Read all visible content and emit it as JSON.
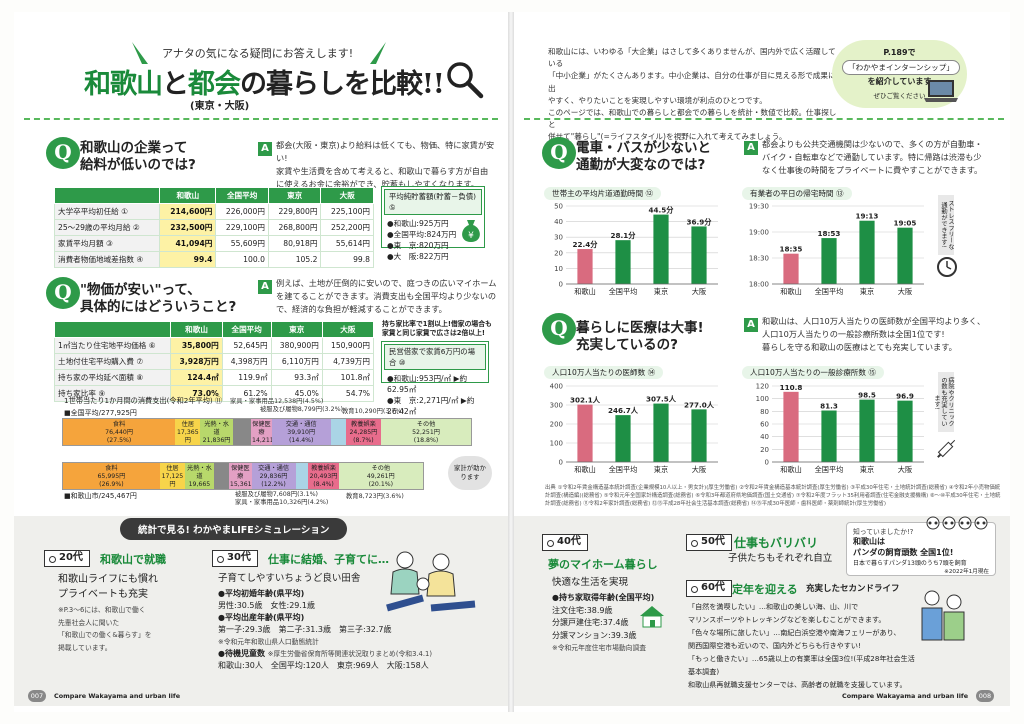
{
  "header": {
    "tagline": "アナタの気になる疑問にお答えします!",
    "title_a": "和歌山",
    "title_b": "と",
    "title_c": "都会",
    "title_d": "の暮らしを比較!!",
    "subtitle": "(東京・大阪)",
    "intro": [
      "和歌山には、いわゆる「大企業」はさして多くありませんが、国内外で広く活躍している",
      "「中小企業」がたくさんあります。中小企業は、自分の仕事が目に見える形で成果に出",
      "やすく、やりたいことを実現しやすい環境が利点のひとつです。",
      "このページでは、和歌山での暮らしと都会での暮らしを統計・数値で比較。仕事探しと",
      "併せて\"暮らし\"(=ライフスタイル)を視野に入れて考えてみましょう。"
    ],
    "callout": {
      "line1": "P.189で",
      "line2": "「わかやまインターンシップ」",
      "line3": "を紹介しています",
      "line4": "ぜひご覧ください"
    }
  },
  "q1": {
    "title1": "和歌山の企業って",
    "title2": "給料が低いのでは?",
    "answer": [
      "都会(大阪・東京)より給料は低くても、物価、特に家賃が安い!",
      "家賃や生活費を含めて考えると、和歌山で暮らす方が自由",
      "に使えるお金に余裕ができ、貯蓄もしやすくなります。"
    ],
    "headers": [
      "",
      "和歌山",
      "全国平均",
      "東京",
      "大阪"
    ],
    "rows": [
      [
        "大学卒平均初任給 ①",
        "214,600円",
        "226,000円",
        "229,800円",
        "225,100円"
      ],
      [
        "25～29歳の平均月給 ②",
        "232,500円",
        "229,100円",
        "268,800円",
        "252,200円"
      ],
      [
        "家賃平均月額 ③",
        "41,094円",
        "55,609円",
        "80,918円",
        "55,614円"
      ],
      [
        "消費者物価地域差指数 ④",
        "99.4",
        "100.0",
        "105.2",
        "99.8"
      ]
    ],
    "savings": {
      "head": "平均純貯蓄額(貯蓄－負債) ⑤",
      "items": [
        "●和歌山:925万円",
        "●全国平均:824万円",
        "●東　京:820万円",
        "●大　阪:822万円"
      ]
    }
  },
  "q2": {
    "title1": "\"物価が安い\"って、",
    "title2": "具体的にはどういうこと?",
    "answer": [
      "例えば、土地が圧倒的に安いので、庭つきの広いマイホーム",
      "を建てることができます。消費支出も全国平均より少ないの",
      "で、経済的な負担が軽減することができます。"
    ],
    "headers": [
      "",
      "和歌山",
      "全国平均",
      "東京",
      "大阪"
    ],
    "rows": [
      [
        "1㎡当たり住宅地平均価格 ⑥",
        "35,800円",
        "52,645円",
        "380,900円",
        "150,900円"
      ],
      [
        "土地付住宅平均購入費 ⑦",
        "3,928万円",
        "4,398万円",
        "6,110万円",
        "4,739万円"
      ],
      [
        "持ち家の平均延べ面積 ⑧",
        "124.4㎡",
        "119.9㎡",
        "93.3㎡",
        "101.8㎡"
      ],
      [
        "持ち家比率 ⑨",
        "73.0%",
        "61.2%",
        "45.0%",
        "54.7%"
      ]
    ],
    "side_note": [
      "持ち家比率で1割以上!借家の場合も",
      "家賃と同じ家賃で広さは2倍以上!"
    ],
    "rent_box": {
      "head": "民営借家で家賃6万円の場合 ⑩",
      "items": [
        "●和歌山:953円/㎡ ▶約62.95㎡",
        "●東　京:2,271円/㎡ ▶約26.42㎡"
      ]
    },
    "spend_title": "1世帯当たり1か月間の消費支出(令和2年平均) ⑪",
    "national_label": "■全国平均/277,925円",
    "wakayama_label": "■和歌山市/245,467円",
    "national": [
      {
        "name": "食料",
        "val": "76,440円",
        "pct": "(27.5%)",
        "w": 27.5,
        "c": "#f5a43c"
      },
      {
        "name": "住居",
        "val": "17,365円",
        "pct": "(6.2%)",
        "w": 6.2,
        "c": "#f7d44a"
      },
      {
        "name": "光熱・水道",
        "val": "21,836円",
        "pct": "(7.9%)",
        "w": 7.9,
        "c": "#b8d86b"
      },
      {
        "name": "",
        "val": "",
        "pct": "",
        "w": 4.5,
        "c": "#888"
      },
      {
        "name": "保健医療",
        "val": "14,211円",
        "pct": "(5.1%)",
        "w": 5.1,
        "c": "#e3a0c4"
      },
      {
        "name": "交通・通信",
        "val": "39,910円",
        "pct": "(14.4%)",
        "w": 14.4,
        "c": "#b5a0d8"
      },
      {
        "name": "",
        "val": "",
        "pct": "",
        "w": 3.7,
        "c": "#aad4e6"
      },
      {
        "name": "教養娯楽",
        "val": "24,285円",
        "pct": "(8.7%)",
        "w": 8.7,
        "c": "#e86c8c"
      },
      {
        "name": "その他",
        "val": "52,251円",
        "pct": "(18.8%)",
        "w": 22.0,
        "c": "#d8ecbd"
      }
    ],
    "wakayama": [
      {
        "name": "食料",
        "val": "65,995円",
        "pct": "(26.9%)",
        "w": 26.9,
        "c": "#f5a43c"
      },
      {
        "name": "住居",
        "val": "17,125円",
        "pct": "(7.0%)",
        "w": 7.0,
        "c": "#f7d44a"
      },
      {
        "name": "光熱・水道",
        "val": "19,665円",
        "pct": "(8.0%)",
        "w": 8.0,
        "c": "#b8d86b"
      },
      {
        "name": "",
        "val": "",
        "pct": "",
        "w": 4.2,
        "c": "#888"
      },
      {
        "name": "保健医療",
        "val": "15,361円",
        "pct": "(6.3%)",
        "w": 6.3,
        "c": "#e3a0c4"
      },
      {
        "name": "交通・通信",
        "val": "29,836円",
        "pct": "(12.2%)",
        "w": 12.2,
        "c": "#b5a0d8"
      },
      {
        "name": "",
        "val": "",
        "pct": "",
        "w": 3.6,
        "c": "#aad4e6"
      },
      {
        "name": "教養娯楽",
        "val": "20,493円",
        "pct": "(8.4%)",
        "w": 8.4,
        "c": "#e86c8c"
      },
      {
        "name": "その他",
        "val": "49,261円",
        "pct": "(20.1%)",
        "w": 23.4,
        "c": "#d8ecbd"
      }
    ],
    "top_notes": [
      "家具・家事用品12,538円(4.5%)",
      "被服及び履物8,799円(3.2%)",
      "教育10,290円(3.7%)"
    ],
    "bottom_notes": [
      "被服及び履物7,608円(3.1%)",
      "家具・家事用品10,326円(4.2%)",
      "教育8,723円(3.6%)"
    ],
    "cloud": "家計が助かります"
  },
  "q3": {
    "title1": "電車・バスが少ないと",
    "title2": "通勤が大変なのでは?",
    "answer": [
      "都会よりも公共交通機関は少ないので、多くの方が自動車・",
      "バイク・自転車などで通勤しています。特に帰路は渋滞も少",
      "なく仕事後の時間をプライベートに費やすことができます。"
    ],
    "chart1_title": "世帯主の平均片道通勤時間 ⑫",
    "chart2_title": "有業者の平日の帰宅時間 ⑬",
    "vnote": "ストレスフリーな通勤ができます!"
  },
  "q4": {
    "title1": "暮らしに医療は大事!",
    "title2": "充実しているの?",
    "answer": [
      "和歌山は、人口10万人当たりの医師数が全国平均より多く、",
      "人口10万人当たりの一般診療所数は全国1位です!",
      "暮らしを守る和歌山の医療はとても充実しています。"
    ],
    "chart1_title": "人口10万人当たりの医師数 ⑭",
    "chart2_title": "人口10万人当たりの一般診療所数 ⑮",
    "vnote": "病院やクリニックの数も充実しています!"
  },
  "chart_data": [
    {
      "type": "bar",
      "title": "世帯主の平均片道通勤時間",
      "categories": [
        "和歌山",
        "全国平均",
        "東京",
        "大阪"
      ],
      "values": [
        22.4,
        28.1,
        44.5,
        36.9
      ],
      "labels": [
        "22.4分",
        "28.1分",
        "44.5分",
        "36.9分"
      ],
      "ylim": [
        0,
        50
      ],
      "yticks": [
        0,
        10,
        20,
        30,
        40,
        50
      ]
    },
    {
      "type": "bar",
      "title": "有業者の平日の帰宅時間",
      "categories": [
        "和歌山",
        "全国平均",
        "東京",
        "大阪"
      ],
      "values": [
        18.583,
        18.883,
        19.217,
        19.083
      ],
      "labels": [
        "18:35",
        "18:53",
        "19:13",
        "19:05"
      ],
      "ylim": [
        18,
        19.5
      ],
      "yticks": [
        "18:00",
        "18:30",
        "19:00",
        "19:30"
      ]
    },
    {
      "type": "bar",
      "title": "人口10万人当たりの医師数",
      "categories": [
        "和歌山",
        "全国平均",
        "東京",
        "大阪"
      ],
      "values": [
        302.1,
        246.7,
        307.5,
        277.0
      ],
      "labels": [
        "302.1人",
        "246.7人",
        "307.5人",
        "277.0人"
      ],
      "ylim": [
        0,
        400
      ],
      "yticks": [
        0,
        100,
        200,
        300,
        400
      ]
    },
    {
      "type": "bar",
      "title": "人口10万人当たりの一般診療所数",
      "categories": [
        "和歌山",
        "全国平均",
        "東京",
        "大阪"
      ],
      "values": [
        110.8,
        81.3,
        98.5,
        96.9
      ],
      "labels": [
        "110.8",
        "81.3",
        "98.5",
        "96.9"
      ],
      "ylim": [
        0,
        120
      ],
      "yticks": [
        0,
        20,
        40,
        60,
        80,
        100,
        120
      ]
    }
  ],
  "sources": "出典 ①令和2年賃金構造基本統計調査(企業規模10人以上・男女計)(厚生労働省) ②令和2年賃金構造基本統計調査(厚生労働省) ③平成30年住宅・土地統計調査(総務省) ④令和2年小売物価統計調査(構造編)(総務省) ⑤令和元年全国家計構造調査(総務省) ⑥令和3年都道府県地価調査(国土交通省) ⑦令和2年度フラット35利用者調査(住宅金融支援機構) ⑧～⑩平成30年住宅・土地統計調査(総務省) ⑪令和2年家計調査(総務省) ⑫⑬平成28年社会生活基本調査(総務省) ⑭⑮平成30年医師・歯科医師・薬剤師統計(厚生労働省)",
  "simulation": {
    "header": "統計で見る! わかやまLIFEシミュレーション",
    "s20": {
      "tag": "20代",
      "title": "和歌山で就職",
      "text": [
        "和歌山ライフにも慣れ",
        "プライベートも充実"
      ],
      "note": [
        "※P.3～6には、和歌山で働く",
        "先輩社会人に聞いた",
        "「和歌山での働く&暮らす」を",
        "掲載しています。"
      ]
    },
    "s30": {
      "tag": "30代",
      "title": "仕事に結婚、子育てに…",
      "text": "子育てしやすいちょうど良い田舎",
      "b1": "●平均初婚年齢(県平均)",
      "b1v": "男性:30.5歳　女性:29.1歳",
      "b2": "●平均出産年齢(県平均)",
      "b2v": "第一子:29.3歳　第二子:31.3歳　第三子:32.7歳",
      "b2n": "※令和元年和歌山県人口動態統計",
      "b3": "●待機児童数",
      "b3n": "※厚生労働省保育所等関連状況取りまとめ(令和3.4.1)",
      "b3v": "和歌山:30人　全国平均:120人　東京:969人　大阪:158人"
    },
    "s40": {
      "tag": "40代",
      "title": "夢のマイホーム暮らし",
      "text": "快適な生活を実現",
      "b1": "●持ち家取得年齢(全国平均)",
      "lines": [
        "注文住宅:38.9歳",
        "分譲戸建住宅:37.4歳",
        "分譲マンション:39.3歳"
      ],
      "note": "※令和元年度住宅市場動向調査"
    },
    "s50": {
      "tag": "50代",
      "title": "仕事もバリバリ",
      "text": "子供たちもそれぞれ自立"
    },
    "s60": {
      "tag": "60代",
      "title": "定年を迎える",
      "text": "充実したセカンドライフ",
      "lines": [
        "「自然を満喫したい」…和歌山の美しい海、山、川で",
        "マリンスポーツやトレッキングなどを楽しむことができます。",
        "「色々な場所に旅したい」…南紀白浜空港や南海フェリーがあり、",
        "関西国際空港も近いので、国内外どちらも行きやすい!",
        "「もっと働きたい」…65歳以上の有業率は全国3位!(平成28年社会生活基本調査)",
        "和歌山県再就職支援センターでは、高齢者の就職を支援しています。"
      ]
    },
    "panda": {
      "q": "知っていましたか!?",
      "l1": "和歌山は",
      "l2": "パンダの飼育頭数 全国1位!",
      "l3": "日本で暮らすパンダ13頭のうち7頭を飼育",
      "note": "※2022年1月現在"
    }
  },
  "footer": {
    "left_page": "007",
    "left_title": "Compare Wakayama and urban life",
    "right_title": "Compare Wakayama and urban life",
    "right_page": "008"
  }
}
